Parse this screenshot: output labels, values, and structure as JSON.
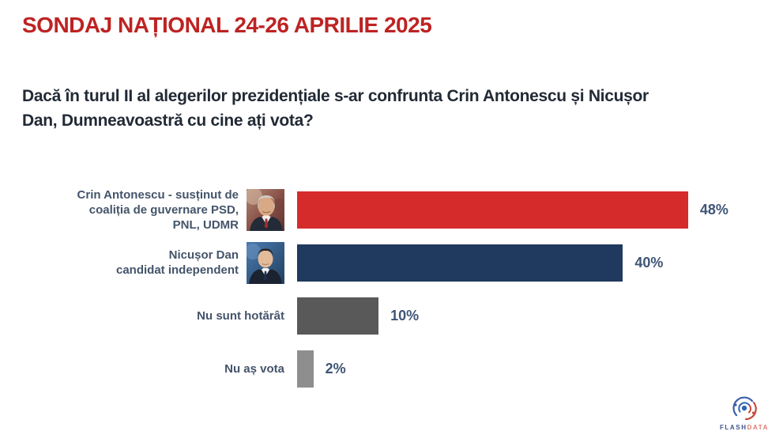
{
  "chart_data": {
    "type": "bar",
    "orientation": "horizontal",
    "title": "SONDAJ NAȚIONAL 24-26 APRILIE 2025",
    "subtitle": "Dacă în turul II al alegerilor prezidențiale s-ar confrunta Crin Antonescu și Nicușor Dan, Dumneavoastră cu cine ați vota?",
    "categories": [
      "Crin Antonescu - susținut de coaliția de guvernare PSD, PNL, UDMR",
      "Nicușor Dan candidat independent",
      "Nu sunt hotărât",
      "Nu aș vota"
    ],
    "values": [
      48,
      40,
      10,
      2
    ],
    "data_labels": [
      "48%",
      "40%",
      "10%",
      "2%"
    ],
    "bar_colors": [
      "#D62B2B",
      "#20395E",
      "#595959",
      "#8E8E8E"
    ],
    "unit": "%",
    "xlim": [
      0,
      60
    ],
    "grid": false,
    "legend": false
  },
  "question": {
    "line1": "Dacă în turul II al alegerilor prezidențiale s-ar confrunta Crin Antonescu și Nicușor",
    "line2": "Dan, Dumneavoastră cu cine ați vota?"
  },
  "rows": [
    {
      "label_lines": [
        "Crin Antonescu - susținut de",
        "coaliția de guvernare PSD,",
        "PNL, UDMR"
      ],
      "photo": "crin-antonescu-photo"
    },
    {
      "label_lines": [
        "Nicușor Dan",
        "candidat independent"
      ],
      "photo": "nicusor-dan-photo"
    },
    {
      "label_lines": [
        "Nu sunt hotărât"
      ]
    },
    {
      "label_lines": [
        "Nu aș vota"
      ]
    }
  ],
  "logo": {
    "flash": "FLASH",
    "data": "DATA",
    "icon": "flashdata-spiral-icon"
  },
  "colors": {
    "title": "#BE2323",
    "question": "#222A35",
    "category_label": "#44546A",
    "value_label": "#3E5577",
    "logo_flash": "#3C5489",
    "logo_data": "#DC7B72"
  }
}
